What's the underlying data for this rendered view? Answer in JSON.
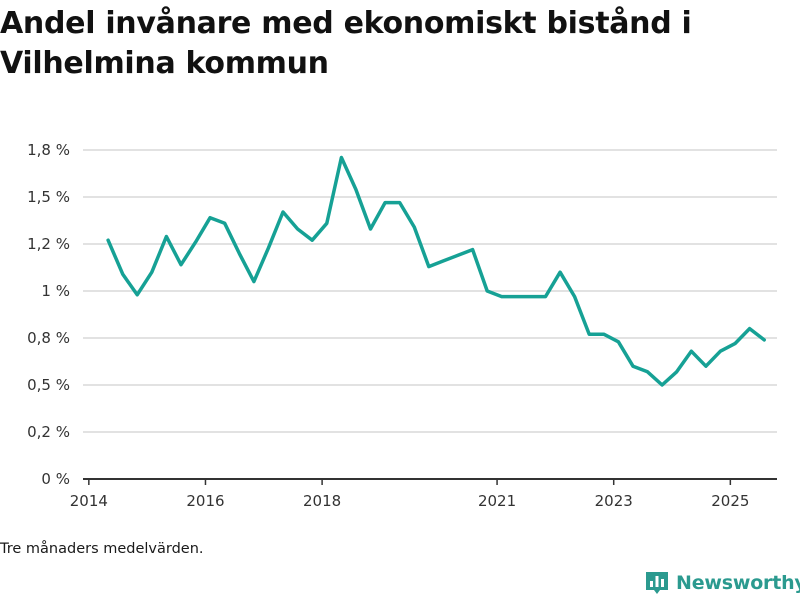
{
  "header": {
    "title_line1": "Andel invånare med ekonomiskt bistånd i",
    "title_line2": "Vilhelmina kommun"
  },
  "footer": {
    "note": "Tre månaders medelvärden.",
    "brand": "Newsworthy"
  },
  "colors": {
    "line": "#16a195",
    "grid": "#d9d9d9",
    "axis": "#333333",
    "brand": "#2b9a8f"
  },
  "icons": {
    "brand": "bar-chart-logo-icon"
  },
  "chart_data": {
    "type": "line",
    "title": "Andel invånare med ekonomiskt bistånd i Vilhelmina kommun",
    "xlabel": "",
    "ylabel": "",
    "grid": true,
    "legend": "none",
    "ylim": [
      0,
      1.75
    ],
    "xlim": [
      2013.9,
      2025.8
    ],
    "y_ticks": [
      0,
      0.25,
      0.5,
      0.75,
      1.0,
      1.25,
      1.5,
      1.75
    ],
    "y_tick_labels": [
      "0 %",
      "0,2 %",
      "0,5 %",
      "0,8 %",
      "1 %",
      "1,2 %",
      "1,5 %",
      "1,8 %"
    ],
    "x_ticks": [
      2014,
      2016,
      2018,
      2021,
      2023,
      2025
    ],
    "x_tick_labels": [
      "2014",
      "2016",
      "2018",
      "2021",
      "2023",
      "2025"
    ],
    "series": [
      {
        "name": "Andel invånare med ekonomiskt bistånd",
        "x": [
          2014.33,
          2014.58,
          2014.83,
          2015.08,
          2015.33,
          2015.58,
          2015.83,
          2016.08,
          2016.33,
          2016.58,
          2016.83,
          2017.08,
          2017.33,
          2017.58,
          2017.83,
          2018.08,
          2018.33,
          2018.58,
          2018.83,
          2019.08,
          2019.33,
          2019.58,
          2019.83,
          2020.08,
          2020.33,
          2020.58,
          2020.83,
          2021.08,
          2021.33,
          2021.58,
          2021.83,
          2022.08,
          2022.33,
          2022.58,
          2022.83,
          2023.08,
          2023.33,
          2023.58,
          2023.83,
          2024.08,
          2024.33,
          2024.58,
          2024.83,
          2025.08,
          2025.33,
          2025.58
        ],
        "values": [
          1.27,
          1.09,
          0.98,
          1.1,
          1.29,
          1.14,
          1.26,
          1.39,
          1.36,
          1.2,
          1.05,
          1.23,
          1.42,
          1.33,
          1.27,
          1.36,
          1.71,
          1.54,
          1.33,
          1.47,
          1.47,
          1.34,
          1.13,
          1.16,
          1.19,
          1.22,
          1.0,
          0.97,
          0.97,
          0.97,
          0.97,
          1.1,
          0.97,
          0.77,
          0.77,
          0.73,
          0.6,
          0.57,
          0.5,
          0.57,
          0.68,
          0.6,
          0.68,
          0.72,
          0.8,
          0.74
        ]
      }
    ]
  }
}
